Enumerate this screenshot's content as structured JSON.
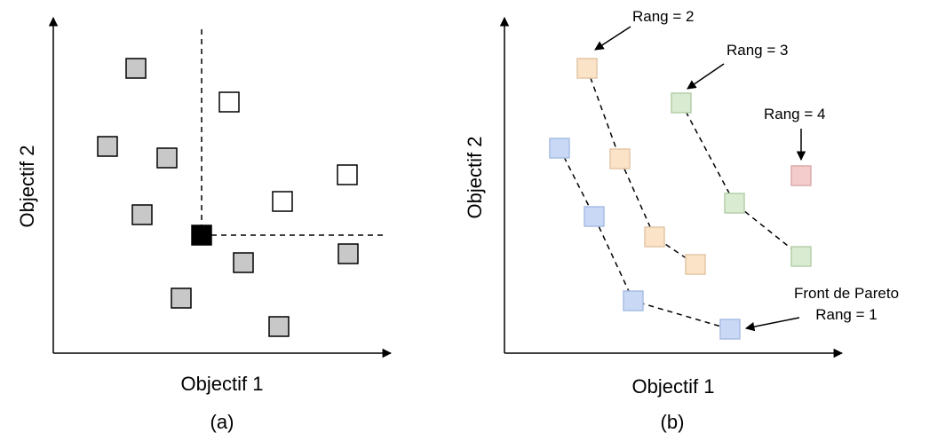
{
  "panel_a": {
    "caption": "(a)",
    "x_axis_label": "Objectif 1",
    "y_axis_label": "Objectif 2",
    "colors": {
      "dominated": "#c8c8c8",
      "non_dominated": "#ffffff",
      "reference": "#000000",
      "outline": "#000000"
    }
  },
  "panel_b": {
    "caption": "(b)",
    "x_axis_label": "Objectif 1",
    "y_axis_label": "Objectif 2",
    "rank_2_label": "Rang = 2",
    "rank_3_label": "Rang = 3",
    "rank_4_label": "Rang = 4",
    "pareto_front_label": "Front de Pareto",
    "rank_1_label": "Rang = 1",
    "colors": {
      "rank_1": {
        "fill": "#c9d9f5",
        "stroke": "#a8bde3"
      },
      "rank_2": {
        "fill": "#fbe3c8",
        "stroke": "#e3c6a6"
      },
      "rank_3": {
        "fill": "#d9ecd2",
        "stroke": "#b5cfaa"
      },
      "rank_4": {
        "fill": "#f4cccc",
        "stroke": "#dcaaaa"
      }
    }
  }
}
